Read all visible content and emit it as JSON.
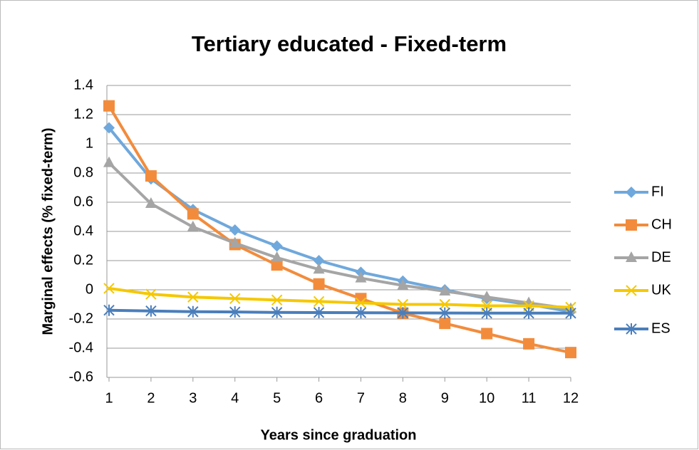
{
  "chart_data": {
    "type": "line",
    "title": "Tertiary educated - Fixed-term",
    "xlabel": "Years since graduation",
    "ylabel": "Marginal effects (% fixed-term)",
    "x": [
      1,
      2,
      3,
      4,
      5,
      6,
      7,
      8,
      9,
      10,
      11,
      12
    ],
    "xlim": [
      1,
      12
    ],
    "xticks": [
      1,
      2,
      3,
      4,
      5,
      6,
      7,
      8,
      9,
      10,
      11,
      12
    ],
    "ylim": [
      -0.6,
      1.4
    ],
    "yticks": [
      -0.6,
      -0.4,
      -0.2,
      0,
      0.2,
      0.4,
      0.6,
      0.8,
      1,
      1.2,
      1.4
    ],
    "grid": true,
    "legend": "right",
    "series": [
      {
        "name": "FI",
        "color": "#6fa8dc",
        "marker": "diamond",
        "values": [
          1.11,
          0.76,
          0.55,
          0.41,
          0.3,
          0.2,
          0.12,
          0.06,
          0.0,
          -0.06,
          -0.1,
          -0.15
        ]
      },
      {
        "name": "CH",
        "color": "#f28c3c",
        "marker": "square",
        "values": [
          1.26,
          0.78,
          0.52,
          0.31,
          0.17,
          0.04,
          -0.06,
          -0.16,
          -0.23,
          -0.3,
          -0.37,
          -0.43
        ]
      },
      {
        "name": "DE",
        "color": "#a5a5a5",
        "marker": "triangle",
        "values": [
          0.87,
          0.59,
          0.43,
          0.32,
          0.22,
          0.14,
          0.08,
          0.03,
          -0.01,
          -0.05,
          -0.09,
          -0.13
        ]
      },
      {
        "name": "UK",
        "color": "#f5c800",
        "marker": "x",
        "values": [
          0.01,
          -0.03,
          -0.05,
          -0.06,
          -0.07,
          -0.08,
          -0.09,
          -0.1,
          -0.1,
          -0.11,
          -0.11,
          -0.12
        ]
      },
      {
        "name": "ES",
        "color": "#4a7ebb",
        "marker": "star",
        "values": [
          -0.14,
          -0.145,
          -0.15,
          -0.152,
          -0.155,
          -0.156,
          -0.157,
          -0.158,
          -0.159,
          -0.16,
          -0.16,
          -0.16
        ]
      }
    ]
  }
}
